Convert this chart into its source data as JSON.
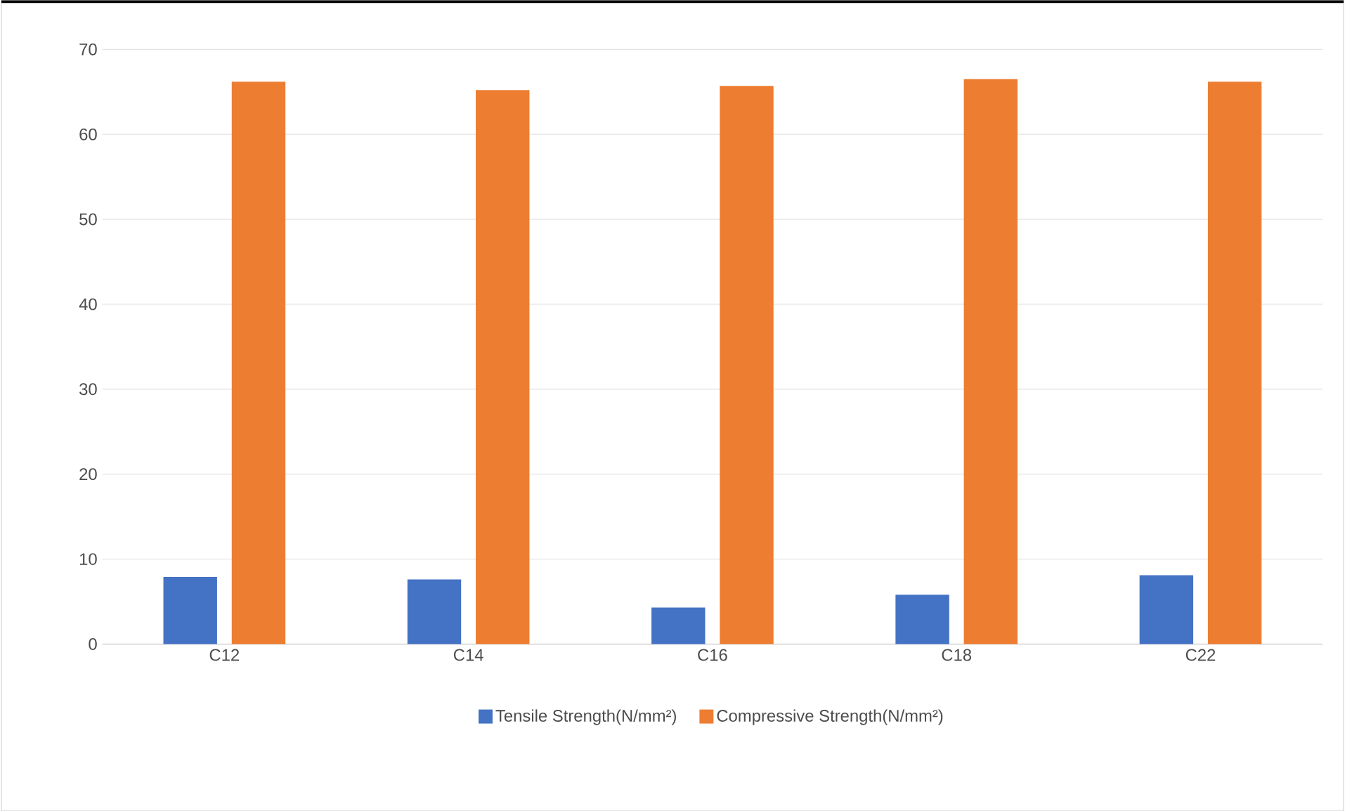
{
  "chart_data": {
    "type": "bar",
    "categories": [
      "C12",
      "C14",
      "C16",
      "C18",
      "C22"
    ],
    "series": [
      {
        "name": "Tensile Strength(N/mm²)",
        "color": "#4472c4",
        "values": [
          7.9,
          7.6,
          4.3,
          5.8,
          8.1
        ]
      },
      {
        "name": "Compressive Strength(N/mm²)",
        "color": "#ed7d31",
        "values": [
          66.2,
          65.2,
          65.7,
          66.5,
          66.2
        ]
      }
    ],
    "ylim": [
      0,
      70
    ],
    "yticks": [
      0,
      10,
      20,
      30,
      40,
      50,
      60,
      70
    ],
    "grid": "y",
    "legend": "bottom"
  }
}
